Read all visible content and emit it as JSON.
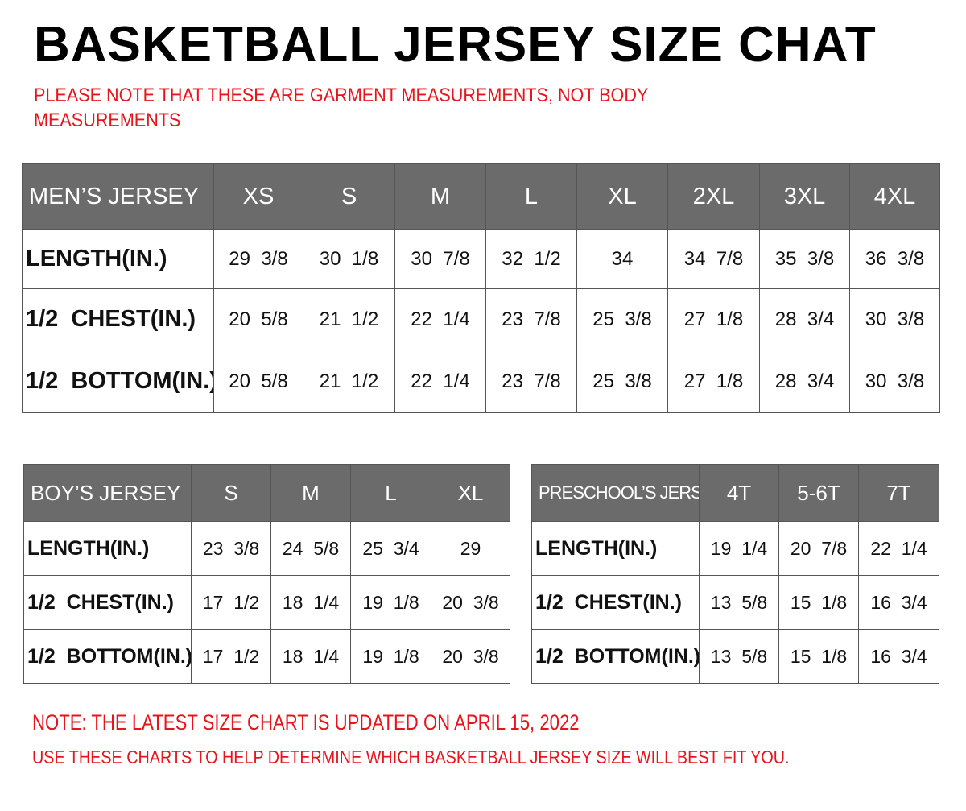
{
  "title": "BASKETBALL JERSEY SIZE CHAT",
  "subnote": "PLEASE NOTE THAT THESE ARE GARMENT MEASUREMENTS, NOT BODY MEASUREMENTS",
  "colors": {
    "header_bg": "#6b6b6b",
    "note": "#e8141b"
  },
  "tables": {
    "men": {
      "header": [
        "MEN’S JERSEY",
        "XS",
        "S",
        "M",
        "L",
        "XL",
        "2XL",
        "3XL",
        "4XL"
      ],
      "rows": [
        [
          "LENGTH(IN.)",
          "29  3/8",
          "30  1/8",
          "30  7/8",
          "32  1/2",
          "34",
          "34  7/8",
          "35  3/8",
          "36  3/8"
        ],
        [
          "1/2  CHEST(IN.)",
          "20  5/8",
          "21  1/2",
          "22  1/4",
          "23  7/8",
          "25  3/8",
          "27  1/8",
          "28  3/4",
          "30  3/8"
        ],
        [
          "1/2  BOTTOM(IN.)",
          "20  5/8",
          "21  1/2",
          "22  1/4",
          "23  7/8",
          "25  3/8",
          "27  1/8",
          "28  3/4",
          "30  3/8"
        ]
      ]
    },
    "boy": {
      "header": [
        "BOY’S JERSEY",
        "S",
        "M",
        "L",
        "XL"
      ],
      "rows": [
        [
          "LENGTH(IN.)",
          "23  3/8",
          "24  5/8",
          "25  3/4",
          "29"
        ],
        [
          "1/2  CHEST(IN.)",
          "17  1/2",
          "18  1/4",
          "19  1/8",
          "20  3/8"
        ],
        [
          "1/2  BOTTOM(IN.)",
          "17  1/2",
          "18  1/4",
          "19  1/8",
          "20  3/8"
        ]
      ]
    },
    "pre": {
      "header": [
        "PRESCHOOL’S JERSEY",
        "4T",
        "5-6T",
        "7T"
      ],
      "rows": [
        [
          "LENGTH(IN.)",
          "19  1/4",
          "20  7/8",
          "22  1/4"
        ],
        [
          "1/2  CHEST(IN.)",
          "13  5/8",
          "15  1/8",
          "16  3/4"
        ],
        [
          "1/2  BOTTOM(IN.)",
          "13  5/8",
          "15  1/8",
          "16  3/4"
        ]
      ]
    }
  },
  "footer": {
    "line1": "NOTE: THE LATEST SIZE CHART IS UPDATED ON APRIL 15, 2022",
    "line2": "USE THESE CHARTS TO HELP DETERMINE WHICH  BASKETBALL JERSEY  SIZE WILL BEST FIT YOU."
  }
}
